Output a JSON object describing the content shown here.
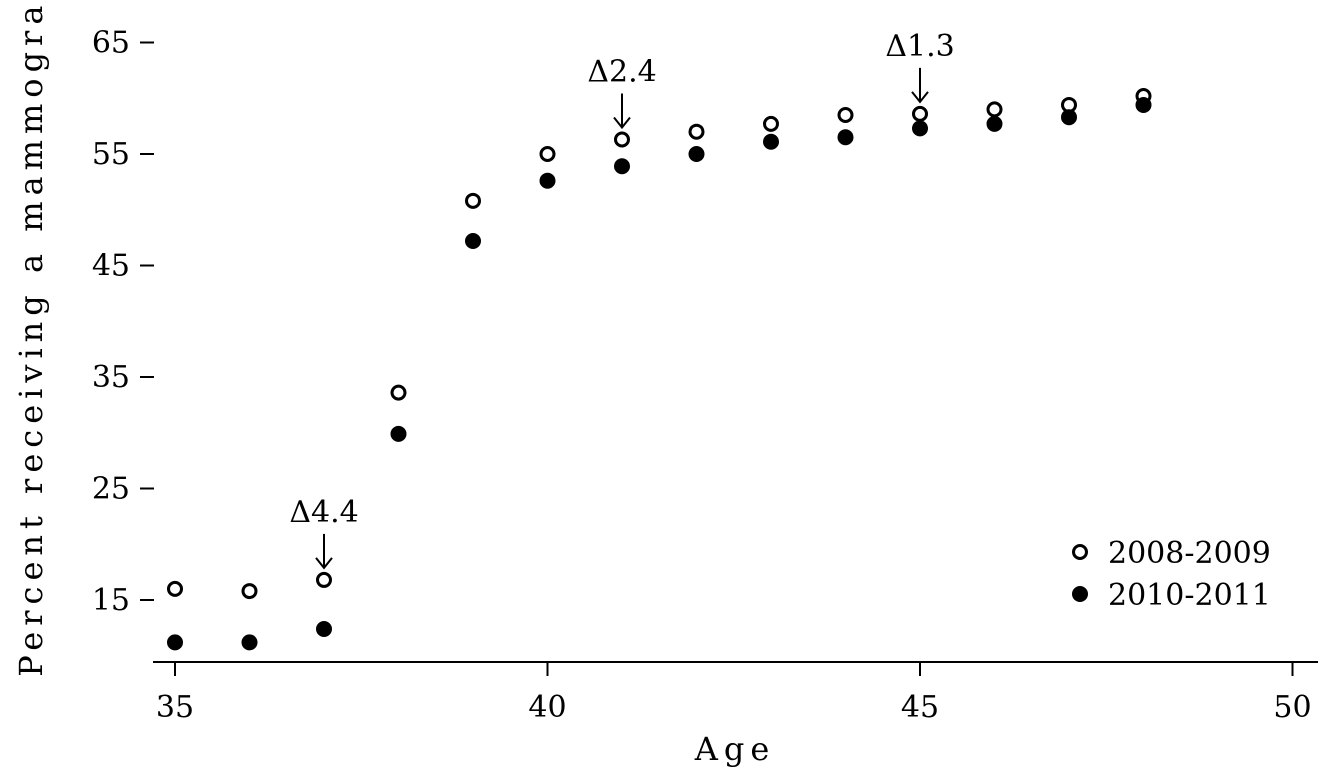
{
  "chart_data": {
    "type": "scatter",
    "xlabel": "Age",
    "ylabel": "Percent receiving a mammogram",
    "xlim": [
      34.4,
      50.6
    ],
    "ylim": [
      9.4,
      68
    ],
    "xticks": [
      35,
      40,
      45,
      50
    ],
    "yticks": [
      15,
      25,
      35,
      45,
      55,
      65
    ],
    "grid": false,
    "legend_position": "bottom-right",
    "series": [
      {
        "name": "2008-2009",
        "marker": "open-circle",
        "x": [
          35,
          36,
          37,
          38,
          39,
          40,
          41,
          42,
          43,
          44,
          45,
          46,
          47,
          48
        ],
        "y": [
          16.0,
          15.8,
          16.8,
          33.6,
          50.8,
          55.0,
          56.3,
          57.0,
          57.7,
          58.5,
          58.6,
          59.0,
          59.4,
          60.2
        ]
      },
      {
        "name": "2010-2011",
        "marker": "filled-circle",
        "x": [
          35,
          36,
          37,
          38,
          39,
          40,
          41,
          42,
          43,
          44,
          45,
          46,
          47,
          48
        ],
        "y": [
          11.2,
          11.2,
          12.4,
          29.9,
          47.2,
          52.6,
          53.9,
          55.0,
          56.1,
          56.5,
          57.3,
          57.7,
          58.3,
          59.4
        ]
      }
    ],
    "annotations": [
      {
        "text": "Δ4.4",
        "x": 37
      },
      {
        "text": "Δ2.4",
        "x": 41
      },
      {
        "text": "Δ1.3",
        "x": 45
      }
    ]
  }
}
